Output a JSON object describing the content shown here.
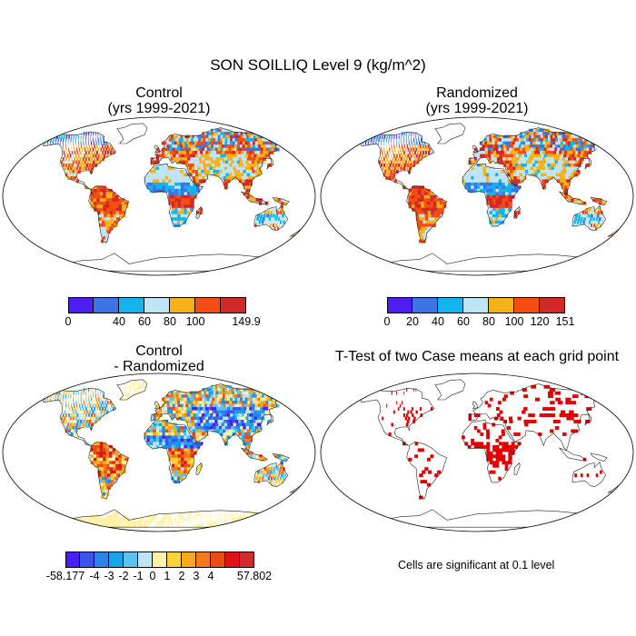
{
  "title": "SON SOILLIQ Level 9 (kg/m^2)",
  "panels": [
    {
      "id": "control",
      "title_lines": [
        "Control",
        "(yrs 1999-2021)"
      ],
      "colorbar": {
        "colors": [
          "#4d1ef2",
          "#3c74e6",
          "#13b5ec",
          "#bfe4f5",
          "#f5b21b",
          "#f54d12",
          "#d12828"
        ],
        "labels": [
          "0",
          "",
          "40",
          "60",
          "80",
          "100",
          "",
          "149.9"
        ]
      }
    },
    {
      "id": "randomized",
      "title_lines": [
        "Randomized",
        "(yrs 1999-2021)"
      ],
      "colorbar": {
        "colors": [
          "#4d1ef2",
          "#3c74e6",
          "#13b5ec",
          "#bfe4f5",
          "#f5b21b",
          "#f54d12",
          "#d12828"
        ],
        "labels": [
          "0",
          "20",
          "40",
          "60",
          "80",
          "100",
          "120",
          "151"
        ]
      }
    },
    {
      "id": "difference",
      "title_lines": [
        "Control",
        "- Randomized"
      ],
      "colorbar": {
        "colors": [
          "#4d1ef2",
          "#3a55ea",
          "#2e83e8",
          "#16a3ea",
          "#5cc3ef",
          "#bfe4f5",
          "#fff2a8",
          "#fcd13a",
          "#f6a81e",
          "#f5781a",
          "#ee4a14",
          "#e01414",
          "#d22b2b"
        ],
        "labels": [
          "-58.177",
          "-4",
          "-3",
          "-2",
          "-1",
          "0",
          "1",
          "2",
          "3",
          "4",
          "57.802"
        ]
      }
    },
    {
      "id": "ttest",
      "title_lines": [
        "T-Test of two Case means at each grid point"
      ],
      "note": "Cells are significant at 0.1 level",
      "significance_color": "#e00000"
    }
  ]
}
